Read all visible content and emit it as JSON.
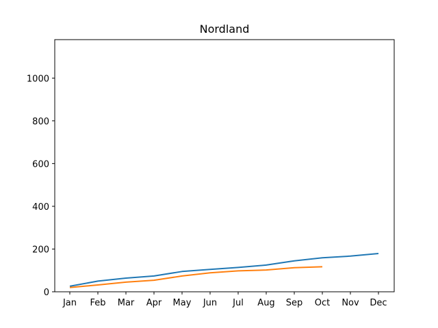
{
  "chart_data": {
    "type": "line",
    "title": "Nordland",
    "xlabel": "",
    "ylabel": "",
    "categories": [
      "Jan",
      "Feb",
      "Mar",
      "Apr",
      "May",
      "Jun",
      "Jul",
      "Aug",
      "Sep",
      "Oct",
      "Nov",
      "Dec"
    ],
    "ylim": [
      0,
      1180
    ],
    "yticks": [
      0,
      200,
      400,
      600,
      800,
      1000
    ],
    "grid": false,
    "legend": "none",
    "series": [
      {
        "color": "#1f77b4",
        "values": [
          26,
          50,
          64,
          74,
          95,
          105,
          114,
          125,
          145,
          159,
          167,
          179
        ]
      },
      {
        "color": "#ff7f0e",
        "values": [
          20,
          32,
          45,
          54,
          74,
          89,
          98,
          102,
          113,
          117,
          null,
          null
        ]
      }
    ]
  }
}
